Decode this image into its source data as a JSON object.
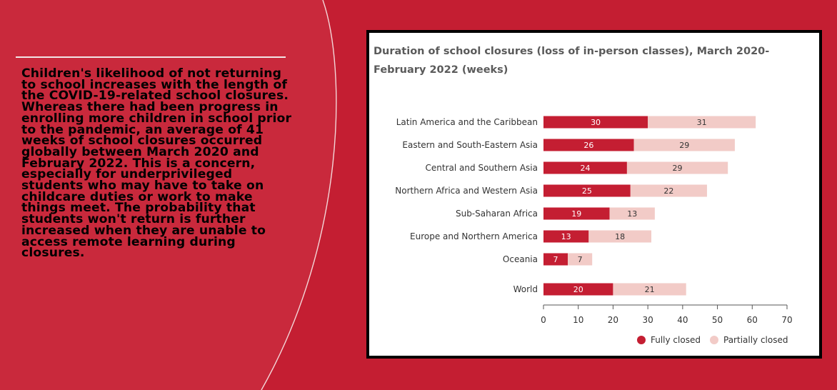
{
  "article": {
    "text": "Children's likelihood of not returning to school increases with the length of the COVID-19-related school closures. Whereas there had been progress in enrolling more children in school prior to the pandemic, an average of 41 weeks of school closures occurred globally between March 2020 and February 2022. This is a concern, especially for underprivileged students who may have to take on childcare duties or work to make things meet. The probability that students won't return is further increased when they are unable to access remote learning during closures."
  },
  "colors": {
    "background": "#c41e32",
    "fully_closed": "#c41e32",
    "partially_closed": "#f2cbc7",
    "title_text": "#5a5a5a",
    "label_text": "#333333"
  },
  "chart_data": {
    "type": "bar",
    "orientation": "horizontal",
    "stacked": true,
    "title": "Duration of school closures (loss of in-person classes), March 2020-February 2022 (weeks)",
    "categories": [
      "Latin America and the Caribbean",
      "Eastern and South-Eastern Asia",
      "Central and Southern Asia",
      "Northern Africa and Western Asia",
      "Sub-Saharan Africa",
      "Europe and Northern America",
      "Oceania",
      "World"
    ],
    "series": [
      {
        "name": "Fully closed",
        "values": [
          30,
          26,
          24,
          25,
          19,
          13,
          7,
          20
        ]
      },
      {
        "name": "Partially closed",
        "values": [
          31,
          29,
          29,
          22,
          13,
          18,
          7,
          21
        ]
      }
    ],
    "xlim": [
      0,
      70
    ],
    "xticks": [
      0,
      10,
      20,
      30,
      40,
      50,
      60,
      70
    ],
    "xlabel": "",
    "ylabel": "",
    "grid": false,
    "legend_position": "bottom-right"
  }
}
